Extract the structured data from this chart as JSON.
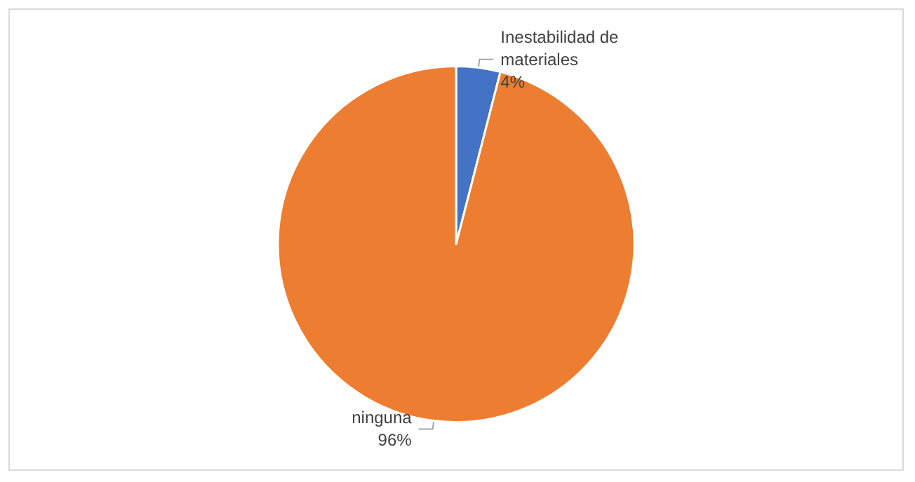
{
  "chart_data": {
    "type": "pie",
    "categories": [
      "Inestabilidad de materiales",
      "ninguna"
    ],
    "values": [
      4,
      96
    ],
    "value_labels": [
      "4%",
      "96%"
    ],
    "colors": [
      "#4472c4",
      "#ed7d31"
    ],
    "legend": false
  }
}
